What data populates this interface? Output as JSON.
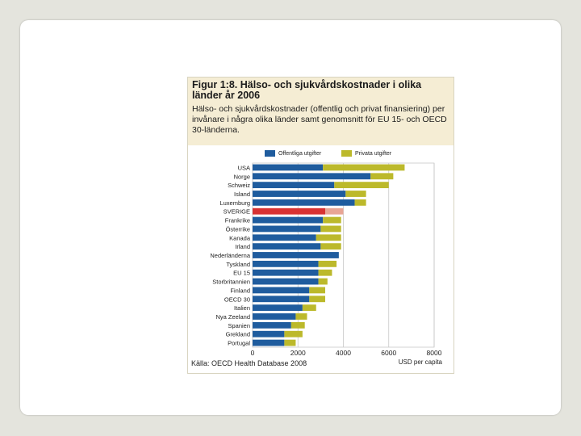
{
  "figure": {
    "title": "Figur 1:8. Hälso- och sjukvårdskostnader i olika länder år 2006",
    "subtitle": "Hälso- och sjukvårdskostnader (offentlig och privat finansiering) per invånare i några olika länder samt genomsnitt för EU 15- och OECD 30-länderna.",
    "source": "Källa: OECD Health Database 2008",
    "unit": "USD per capita"
  },
  "colors": {
    "public": "#1f5c9e",
    "private": "#bcb92b",
    "sweden_public": "#d83232",
    "sweden_private": "#e8a595",
    "grid": "#c8c8c8"
  },
  "chart_data": {
    "type": "bar",
    "orientation": "horizontal",
    "stacked": true,
    "title": "Figur 1:8. Hälso- och sjukvårdskostnader i olika länder år 2006",
    "xlabel": "USD per capita",
    "xlim": [
      0,
      8000
    ],
    "xticks": [
      "0",
      "2000",
      "4000",
      "6000",
      "8000"
    ],
    "xtick_values": [
      0,
      2000,
      4000,
      6000,
      8000
    ],
    "legend": [
      "Offentliga utgifter",
      "Privata utgifter"
    ],
    "categories": [
      "USA",
      "Norge",
      "Schweiz",
      "Island",
      "Luxemburg",
      "SVERIGE",
      "Frankrike",
      "Österrike",
      "Kanada",
      "Irland",
      "Nederländerna",
      "Tyskland",
      "EU 15",
      "Storbritannien",
      "Finland",
      "OECD 30",
      "Italien",
      "Nya Zeeland",
      "Spanien",
      "Grekland",
      "Portugal"
    ],
    "highlight": "SVERIGE",
    "series": [
      {
        "name": "Offentliga utgifter",
        "values": [
          3100,
          5200,
          3600,
          4100,
          4500,
          3200,
          3100,
          3000,
          2800,
          3000,
          3800,
          2900,
          2900,
          2900,
          2500,
          2500,
          2200,
          1900,
          1700,
          1400,
          1400
        ]
      },
      {
        "name": "Privata utgifter",
        "values": [
          3600,
          1000,
          2400,
          900,
          500,
          800,
          800,
          900,
          1100,
          900,
          0,
          800,
          600,
          400,
          700,
          700,
          600,
          500,
          600,
          800,
          500
        ]
      }
    ]
  }
}
